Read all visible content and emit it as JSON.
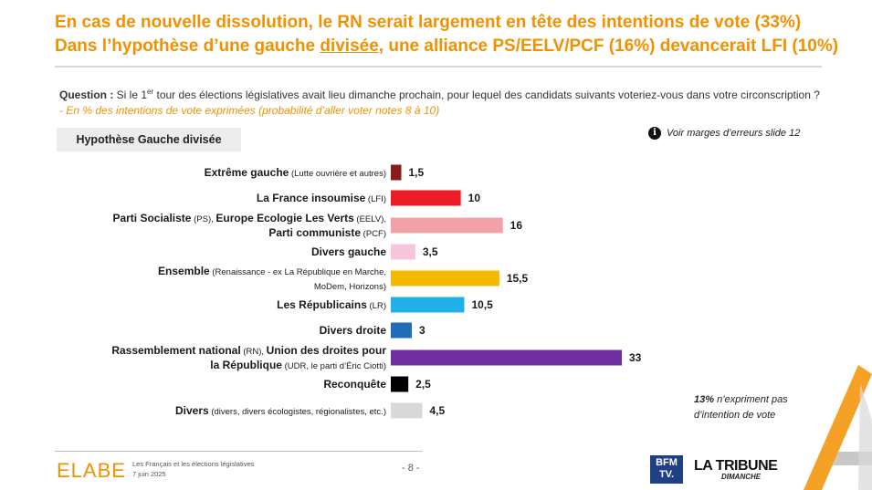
{
  "header": {
    "title_line1": "En cas de nouvelle dissolution, le RN serait largement en tête des intentions de vote (33%)",
    "title_line2_pre": "Dans l’hypothèse d’une gauche ",
    "title_line2_underlined": "divisée",
    "title_line2_post": ", une alliance PS/EELV/PCF (16%) devancerait LFI (10%)"
  },
  "question": {
    "label": "Question : ",
    "text_a": "Si le 1",
    "sup": "er",
    "text_b": " tour des élections législatives avait lieu dimanche prochain, pour lequel des candidats suivants voteriez-vous dans votre circonscription ?",
    "note": " - En % des intentions de vote exprimées (probabilité d’aller voter notes 8 à 10)"
  },
  "hypothesis_label": "Hypothèse Gauche divisée",
  "margins_note": "Voir marges d’erreurs slide 12",
  "info_icon": "i",
  "abstention": {
    "pct": "13%",
    "text": " n’expriment pas d’intention de vote"
  },
  "chart_data": {
    "type": "bar",
    "orientation": "horizontal",
    "title": "Hypothèse Gauche divisée",
    "unit": "%",
    "categories": [
      {
        "bold": "Extrême gauche",
        "detail_lines": [
          " (Lutte ouvrière et autres)"
        ],
        "bold_extra": ""
      },
      {
        "bold": "La France insoumise",
        "detail_lines": [
          " (LFI)"
        ],
        "bold_extra": ""
      },
      {
        "bold": "Parti Socialiste",
        "detail_lines": [
          " (PS), ",
          "Europe Ecologie Les Verts",
          " (EELV),",
          "Parti communiste",
          " (PCF)"
        ],
        "bold_extra": ""
      },
      {
        "bold": "Divers gauche",
        "detail_lines": [
          ""
        ],
        "bold_extra": ""
      },
      {
        "bold": "Ensemble",
        "detail_lines": [
          " (Renaissance - ex La République en Marche,",
          "MoDem, Horizons)"
        ],
        "bold_extra": ""
      },
      {
        "bold": "Les Républicains",
        "detail_lines": [
          " (LR)"
        ],
        "bold_extra": ""
      },
      {
        "bold": "Divers droite",
        "detail_lines": [
          ""
        ],
        "bold_extra": ""
      },
      {
        "bold": "Rassemblement national",
        "detail_lines": [
          " (RN), ",
          "Union des droites pour",
          "la République",
          " (UDR, le parti d’Éric Ciotti)"
        ],
        "bold_extra": ""
      },
      {
        "bold": "Reconquête",
        "detail_lines": [
          ""
        ],
        "bold_extra": ""
      },
      {
        "bold": "Divers",
        "detail_lines": [
          " (divers, divers écologistes, régionalistes, etc.)"
        ],
        "bold_extra": ""
      }
    ],
    "values": [
      1.5,
      10,
      16,
      3.5,
      15.5,
      10.5,
      3,
      33,
      2.5,
      4.5
    ],
    "value_labels": [
      "1,5",
      "10",
      "16",
      "3,5",
      "15,5",
      "10,5",
      "3",
      "33",
      "2,5",
      "4,5"
    ],
    "colors": [
      "#8b1a1a",
      "#ee1c25",
      "#f3a1a8",
      "#f5c6dc",
      "#f5b800",
      "#20b0e8",
      "#1f6db8",
      "#7030a0",
      "#000000",
      "#d9d9d9"
    ],
    "xlim": [
      0,
      33
    ],
    "grid": false,
    "legend": "none"
  },
  "footer": {
    "logo": "ELABE",
    "line1": "Les Français et les élections législatives",
    "line2": "7 juin 2025",
    "page": "- 8 -",
    "bfm_line1": "BFM",
    "bfm_line2": "TV.",
    "tribune": "LA TRIBUNE",
    "dimanche": "DIMANCHE"
  }
}
